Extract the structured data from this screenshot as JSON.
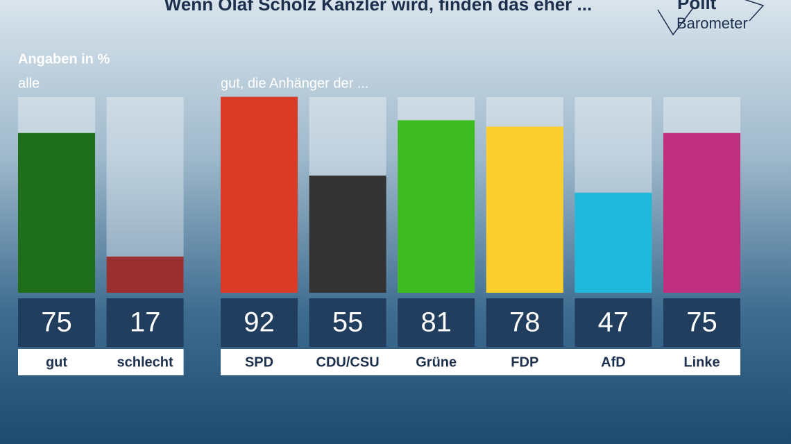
{
  "title": "Wenn Olaf Scholz Kanzler wird, finden das eher ...",
  "logo": {
    "line1": "Polit",
    "line2": "Barometer"
  },
  "note": "Angaben in %",
  "chart_data": [
    {
      "type": "bar",
      "subtitle": "alle",
      "ylim": [
        0,
        100
      ],
      "categories": [
        "gut",
        "schlecht"
      ],
      "values": [
        75,
        17
      ],
      "colors": [
        "#1f6e1c",
        "#9b2f30"
      ]
    },
    {
      "type": "bar",
      "subtitle": "gut, die Anhänger der ...",
      "ylim": [
        0,
        100
      ],
      "categories": [
        "SPD",
        "CDU/CSU",
        "Grüne",
        "FDP",
        "AfD",
        "Linke"
      ],
      "values": [
        92,
        55,
        81,
        78,
        47,
        75
      ],
      "colors": [
        "#d93b26",
        "#333333",
        "#3dbb20",
        "#fbcd2d",
        "#20b9dc",
        "#be2f7d"
      ]
    }
  ]
}
